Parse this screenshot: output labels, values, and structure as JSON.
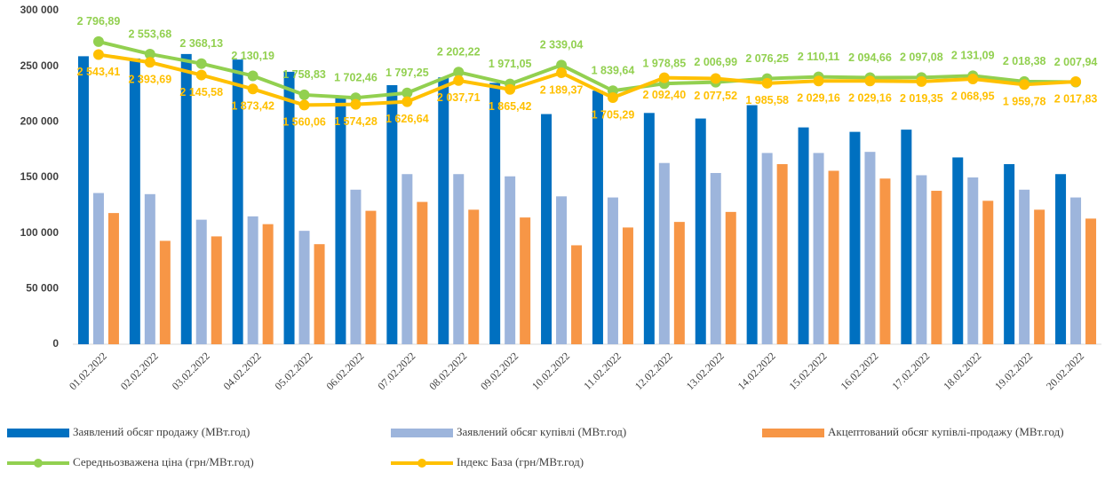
{
  "chart_data": {
    "type": "bar",
    "categories": [
      "01.02.2022",
      "02.02.2022",
      "03.02.2022",
      "04.02.2022",
      "05.02.2022",
      "06.02.2022",
      "07.02.2022",
      "08.02.2022",
      "09.02.2022",
      "10.02.2022",
      "11.02.2022",
      "12.02.2022",
      "13.02.2022",
      "14.02.2022",
      "15.02.2022",
      "16.02.2022",
      "17.02.2022",
      "18.02.2022",
      "19.02.2022",
      "20.02.2022"
    ],
    "ylim": [
      0,
      300000
    ],
    "yticks": [
      {
        "value": 0,
        "label": "0"
      },
      {
        "value": 50000,
        "label": "50 000"
      },
      {
        "value": 100000,
        "label": "100 000"
      },
      {
        "value": 150000,
        "label": "150 000"
      },
      {
        "value": 200000,
        "label": "200 000"
      },
      {
        "value": 250000,
        "label": "250 000"
      },
      {
        "value": 300000,
        "label": "300 000"
      }
    ],
    "y2lim": [
      -3100,
      3400
    ],
    "grid": false,
    "series": [
      {
        "name": "Заявлений обсяг продажу (МВт.год)",
        "type": "bar",
        "color": "#0070c0",
        "values": [
          259000,
          257000,
          261000,
          256000,
          245000,
          222000,
          233000,
          240000,
          235000,
          207000,
          228000,
          208000,
          203000,
          215000,
          195000,
          191000,
          193000,
          168000,
          162000,
          153000
        ]
      },
      {
        "name": "Заявлений обсяг купівлі (МВт.год)",
        "type": "bar",
        "color": "#9db5dc",
        "values": [
          136000,
          135000,
          112000,
          115000,
          102000,
          139000,
          153000,
          153000,
          151000,
          133000,
          132000,
          163000,
          154000,
          172000,
          172000,
          173000,
          152000,
          150000,
          139000,
          132000
        ]
      },
      {
        "name": "Акцептований обсяг купівлі-продажу (МВт.год)",
        "type": "bar",
        "color": "#f79646",
        "values": [
          118000,
          93000,
          97000,
          108000,
          90000,
          120000,
          128000,
          121000,
          114000,
          89000,
          105000,
          110000,
          119000,
          162000,
          156000,
          149000,
          138000,
          129000,
          121000,
          113000
        ]
      },
      {
        "name": "Середньозважена ціна (грн/МВт.год)",
        "type": "line",
        "axis": "y2",
        "color": "#92d050",
        "values": [
          2796.89,
          2553.68,
          2368.13,
          2130.19,
          1758.83,
          1702.46,
          1797.25,
          2202.22,
          1971.05,
          2339.04,
          1839.64,
          1978.85,
          2006.99,
          2076.25,
          2110.11,
          2094.66,
          2097.08,
          2131.09,
          2018.38,
          2007.94
        ],
        "value_labels": [
          "2 796,89",
          "2 553,68",
          "2 368,13",
          "2 130,19",
          "1 758,83",
          "1 702,46",
          "1 797,25",
          "2 202,22",
          "1 971,05",
          "2 339,04",
          "1 839,64",
          "1 978,85",
          "2 006,99",
          "2 076,25",
          "2 110,11",
          "2 094,66",
          "2 097,08",
          "2 131,09",
          "2 018,38",
          "2 007,94"
        ]
      },
      {
        "name": "Індекс База (грн/МВт.год)",
        "type": "line",
        "axis": "y2",
        "color": "#ffc000",
        "values": [
          2543.41,
          2393.69,
          2145.58,
          1873.42,
          1560.06,
          1574.28,
          1626.64,
          2037.71,
          1865.42,
          2189.37,
          1705.29,
          2092.4,
          2077.52,
          1985.58,
          2029.16,
          2029.16,
          2019.35,
          2068.95,
          1959.78,
          2017.83
        ],
        "value_labels": [
          "2 543,41",
          "2 393,69",
          "2 145,58",
          "1 873,42",
          "1 560,06",
          "1 574,28",
          "1 626,64",
          "2 037,71",
          "1 865,42",
          "2 189,37",
          "1 705,29",
          "2 092,40",
          "2 077,52",
          "1 985,58",
          "2 029,16",
          "2 029,16",
          "2 019,35",
          "2 068,95",
          "1 959,78",
          "2 017,83"
        ]
      }
    ]
  }
}
